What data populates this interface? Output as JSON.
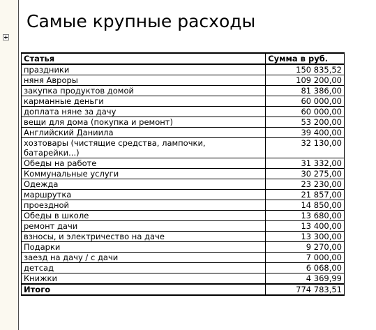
{
  "title": "Самые крупные расходы",
  "table": {
    "headers": {
      "item": "Статья",
      "sum": "Сумма в руб."
    },
    "rows": [
      {
        "item": "праздники",
        "sum": "150 835,52"
      },
      {
        "item": "няня Авроры",
        "sum": "109 200,00"
      },
      {
        "item": "закупка продуктов домой",
        "sum": "81 386,00"
      },
      {
        "item": "карманные деньги",
        "sum": "60 000,00"
      },
      {
        "item": "доплата няне за дачу",
        "sum": "60 000,00"
      },
      {
        "item": "вещи для дома (покупка и ремонт)",
        "sum": "53 200,00"
      },
      {
        "item": "Английский Даниила",
        "sum": "39 400,00"
      },
      {
        "item": "хозтовары (чистящие средства, лампочки, батарейки...)",
        "sum": "32 130,00"
      },
      {
        "item": "Обеды на работе",
        "sum": "31 332,00"
      },
      {
        "item": "Коммунальные услуги",
        "sum": "30 275,00"
      },
      {
        "item": "Одежда",
        "sum": "23 230,00"
      },
      {
        "item": "маршрутка",
        "sum": "21 857,00"
      },
      {
        "item": "проездной",
        "sum": "14 850,00"
      },
      {
        "item": "Обеды в школе",
        "sum": "13 680,00"
      },
      {
        "item": "ремонт дачи",
        "sum": "13 400,00"
      },
      {
        "item": "взносы, и электричество на даче",
        "sum": "13 300,00"
      },
      {
        "item": "Подарки",
        "sum": "9 270,00"
      },
      {
        "item": "заезд на дачу / с дачи",
        "sum": "7 000,00"
      },
      {
        "item": "детсад",
        "sum": "6 068,00"
      },
      {
        "item": "Книжки",
        "sum": "4 369,99"
      }
    ],
    "total": {
      "item": "Итого",
      "sum": "774 783,51"
    }
  }
}
